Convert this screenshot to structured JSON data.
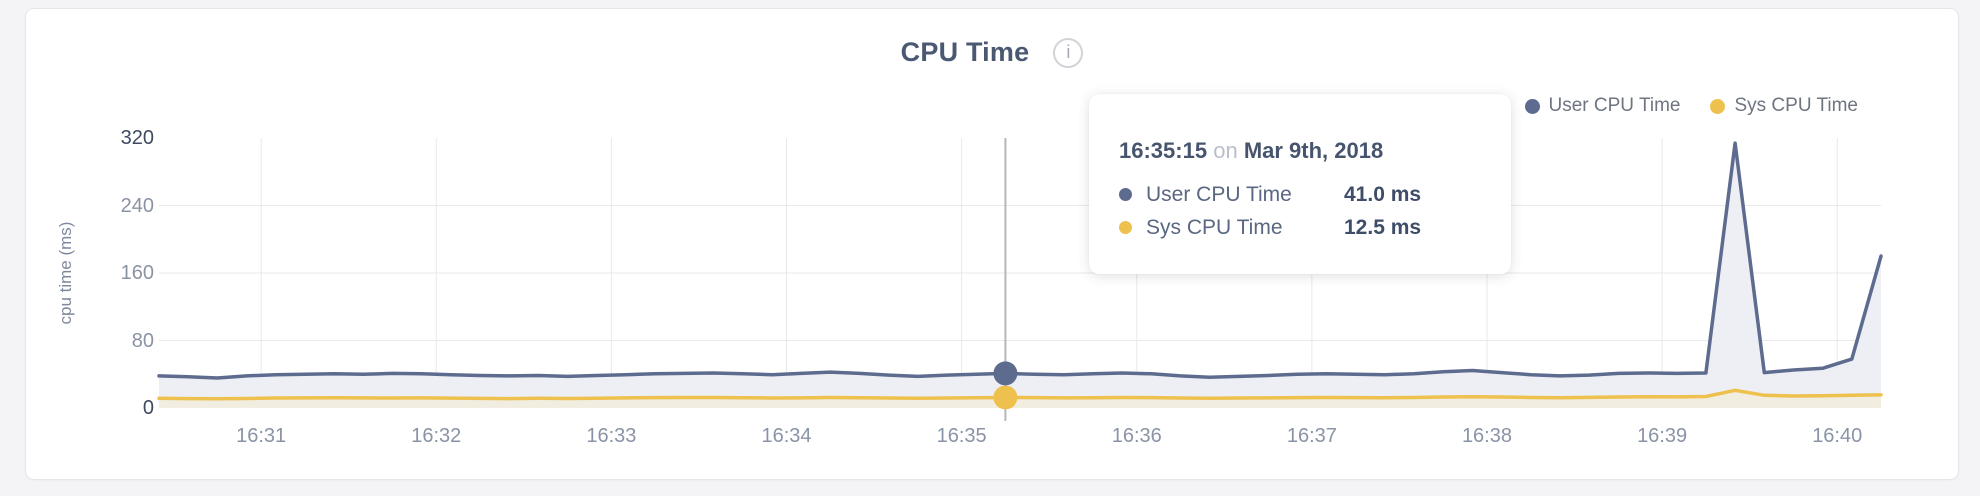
{
  "page": {
    "background": "#f4f4f6"
  },
  "header": {
    "title": "CPU Time",
    "info_icon_glyph": "i"
  },
  "legend": {
    "items": [
      {
        "label": "User CPU Time",
        "color": "#5d6c8e"
      },
      {
        "label": "Sys CPU Time",
        "color": "#eec14e"
      }
    ]
  },
  "y_axis": {
    "title": "cpu time (ms)",
    "tick_color_default": "#8a93a6",
    "tick_color_extreme": "#3e4a61"
  },
  "tooltip": {
    "time": "16:35:15",
    "conjunction": "on",
    "date": "Mar 9th, 2018",
    "rows": [
      {
        "label": "User CPU Time",
        "value": "41.0 ms",
        "color": "#5d6c8e"
      },
      {
        "label": "Sys CPU Time",
        "value": "12.5 ms",
        "color": "#eec14e"
      }
    ]
  },
  "chart_data": {
    "type": "area",
    "title": "CPU Time",
    "xlabel": "",
    "ylabel": "cpu time (ms)",
    "ylim": [
      0,
      320
    ],
    "y_ticks": [
      0,
      80,
      160,
      240,
      320
    ],
    "x_ticks": [
      "16:31",
      "16:32",
      "16:33",
      "16:34",
      "16:35",
      "16:36",
      "16:37",
      "16:38",
      "16:39",
      "16:40"
    ],
    "grid": true,
    "legend_position": "top-right",
    "crosshair_color": "#b3b6ba",
    "gridline_color": "#e9e9eb",
    "x": [
      "16:30:25",
      "16:30:35",
      "16:30:45",
      "16:30:55",
      "16:31:05",
      "16:31:15",
      "16:31:25",
      "16:31:35",
      "16:31:45",
      "16:31:55",
      "16:32:05",
      "16:32:15",
      "16:32:25",
      "16:32:35",
      "16:32:45",
      "16:32:55",
      "16:33:05",
      "16:33:15",
      "16:33:25",
      "16:33:35",
      "16:33:45",
      "16:33:55",
      "16:34:05",
      "16:34:15",
      "16:34:25",
      "16:34:35",
      "16:34:45",
      "16:34:55",
      "16:35:05",
      "16:35:15",
      "16:35:25",
      "16:35:35",
      "16:35:45",
      "16:35:55",
      "16:36:05",
      "16:36:15",
      "16:36:25",
      "16:36:35",
      "16:36:45",
      "16:36:55",
      "16:37:05",
      "16:37:15",
      "16:37:25",
      "16:37:35",
      "16:37:45",
      "16:37:55",
      "16:38:05",
      "16:38:15",
      "16:38:25",
      "16:38:35",
      "16:38:45",
      "16:38:55",
      "16:39:05",
      "16:39:15",
      "16:39:25",
      "16:39:35",
      "16:39:45",
      "16:39:55",
      "16:40:05",
      "16:40:15"
    ],
    "series": [
      {
        "name": "User CPU Time",
        "color": "#5d6c8e",
        "fill": "#edeff4",
        "values": [
          38,
          37,
          35.5,
          38,
          39.5,
          40,
          40.5,
          40,
          41,
          40.5,
          39.5,
          38.5,
          38,
          38.5,
          37.5,
          38.5,
          39.5,
          40.5,
          41,
          41.5,
          40.5,
          39.5,
          41,
          42.5,
          41,
          39,
          37.5,
          39,
          40,
          41,
          40,
          39.5,
          40.5,
          41.5,
          40.5,
          38,
          36.5,
          37.5,
          38.5,
          40,
          40.5,
          40,
          39.5,
          40.5,
          43,
          44.5,
          42,
          39.5,
          38,
          39,
          41,
          41.5,
          41,
          41.5,
          314,
          42,
          45,
          47,
          58,
          180
        ]
      },
      {
        "name": "Sys CPU Time",
        "color": "#eec14e",
        "fill": "#f1ede1",
        "values": [
          11.5,
          11.2,
          11,
          11.3,
          11.8,
          12,
          12.2,
          12,
          11.8,
          12,
          11.7,
          11.4,
          11.2,
          11.5,
          11.3,
          11.6,
          12,
          12.3,
          12.5,
          12.4,
          12.2,
          11.8,
          12,
          12.4,
          12.2,
          11.8,
          11.5,
          11.9,
          12.2,
          12.5,
          12.3,
          12,
          12.2,
          12.5,
          12.3,
          11.8,
          11.5,
          11.8,
          12,
          12.3,
          12.5,
          12.3,
          12.1,
          12.4,
          13,
          13.4,
          13,
          12.5,
          12.2,
          12.6,
          13,
          13.3,
          13.2,
          13.6,
          21,
          15,
          14.2,
          14.5,
          15,
          15.5
        ]
      }
    ],
    "selected": {
      "x": "16:35:15",
      "values": [
        41.0,
        12.5
      ]
    }
  }
}
